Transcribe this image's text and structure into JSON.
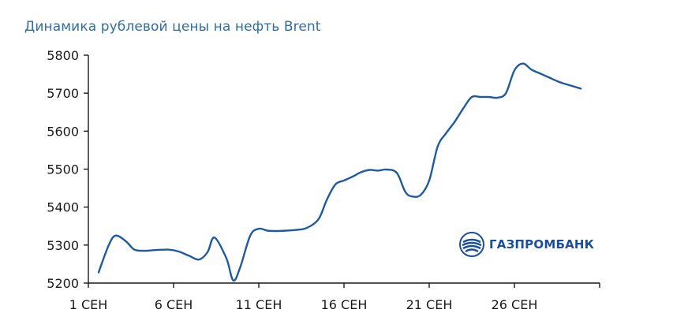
{
  "chart_data": {
    "type": "line",
    "title": "Динамика рублевой цены на нефть Brent",
    "xlabel": "",
    "ylabel": "",
    "ylim": [
      5200,
      5800
    ],
    "yticks": [
      5200,
      5300,
      5400,
      5500,
      5600,
      5700,
      5800
    ],
    "xticks": [
      {
        "day": 1,
        "label": "1 СЕН"
      },
      {
        "day": 6,
        "label": "6 СЕН"
      },
      {
        "day": 11,
        "label": "11 СЕН"
      },
      {
        "day": 16,
        "label": "16 СЕН"
      },
      {
        "day": 21,
        "label": "21 СЕН"
      },
      {
        "day": 26,
        "label": "26 СЕН"
      }
    ],
    "grid": false,
    "line_color": "#1f5a9e",
    "series": [
      {
        "x": [
          1.6,
          2.2,
          2.6,
          3.2,
          3.7,
          4.3,
          5.0,
          5.7,
          6.3,
          6.9,
          7.5,
          8.0,
          8.4,
          9.1,
          9.5,
          9.9,
          10.5,
          11.0,
          11.5,
          12.0,
          12.6,
          13.2,
          13.8,
          14.5,
          15.0,
          15.5,
          16.0,
          16.5,
          17.0,
          17.5,
          18.0,
          18.5,
          19.1,
          19.6,
          20.0,
          20.5,
          21.0,
          21.5,
          22.0,
          22.5,
          23.0,
          23.5,
          24.0,
          24.5,
          25.0,
          25.5,
          26.0,
          26.5,
          27.0,
          27.5,
          28.0,
          28.6,
          29.3,
          29.9
        ],
        "values": [
          5228,
          5300,
          5325,
          5310,
          5288,
          5285,
          5287,
          5288,
          5283,
          5272,
          5262,
          5282,
          5320,
          5265,
          5207,
          5240,
          5325,
          5343,
          5338,
          5337,
          5338,
          5340,
          5345,
          5368,
          5420,
          5460,
          5470,
          5480,
          5492,
          5498,
          5496,
          5499,
          5490,
          5440,
          5428,
          5432,
          5470,
          5560,
          5595,
          5625,
          5660,
          5690,
          5690,
          5690,
          5688,
          5700,
          5760,
          5778,
          5762,
          5752,
          5742,
          5730,
          5720,
          5712
        ]
      }
    ]
  },
  "brand": {
    "name": "ГАЗПРОМБАНК"
  }
}
